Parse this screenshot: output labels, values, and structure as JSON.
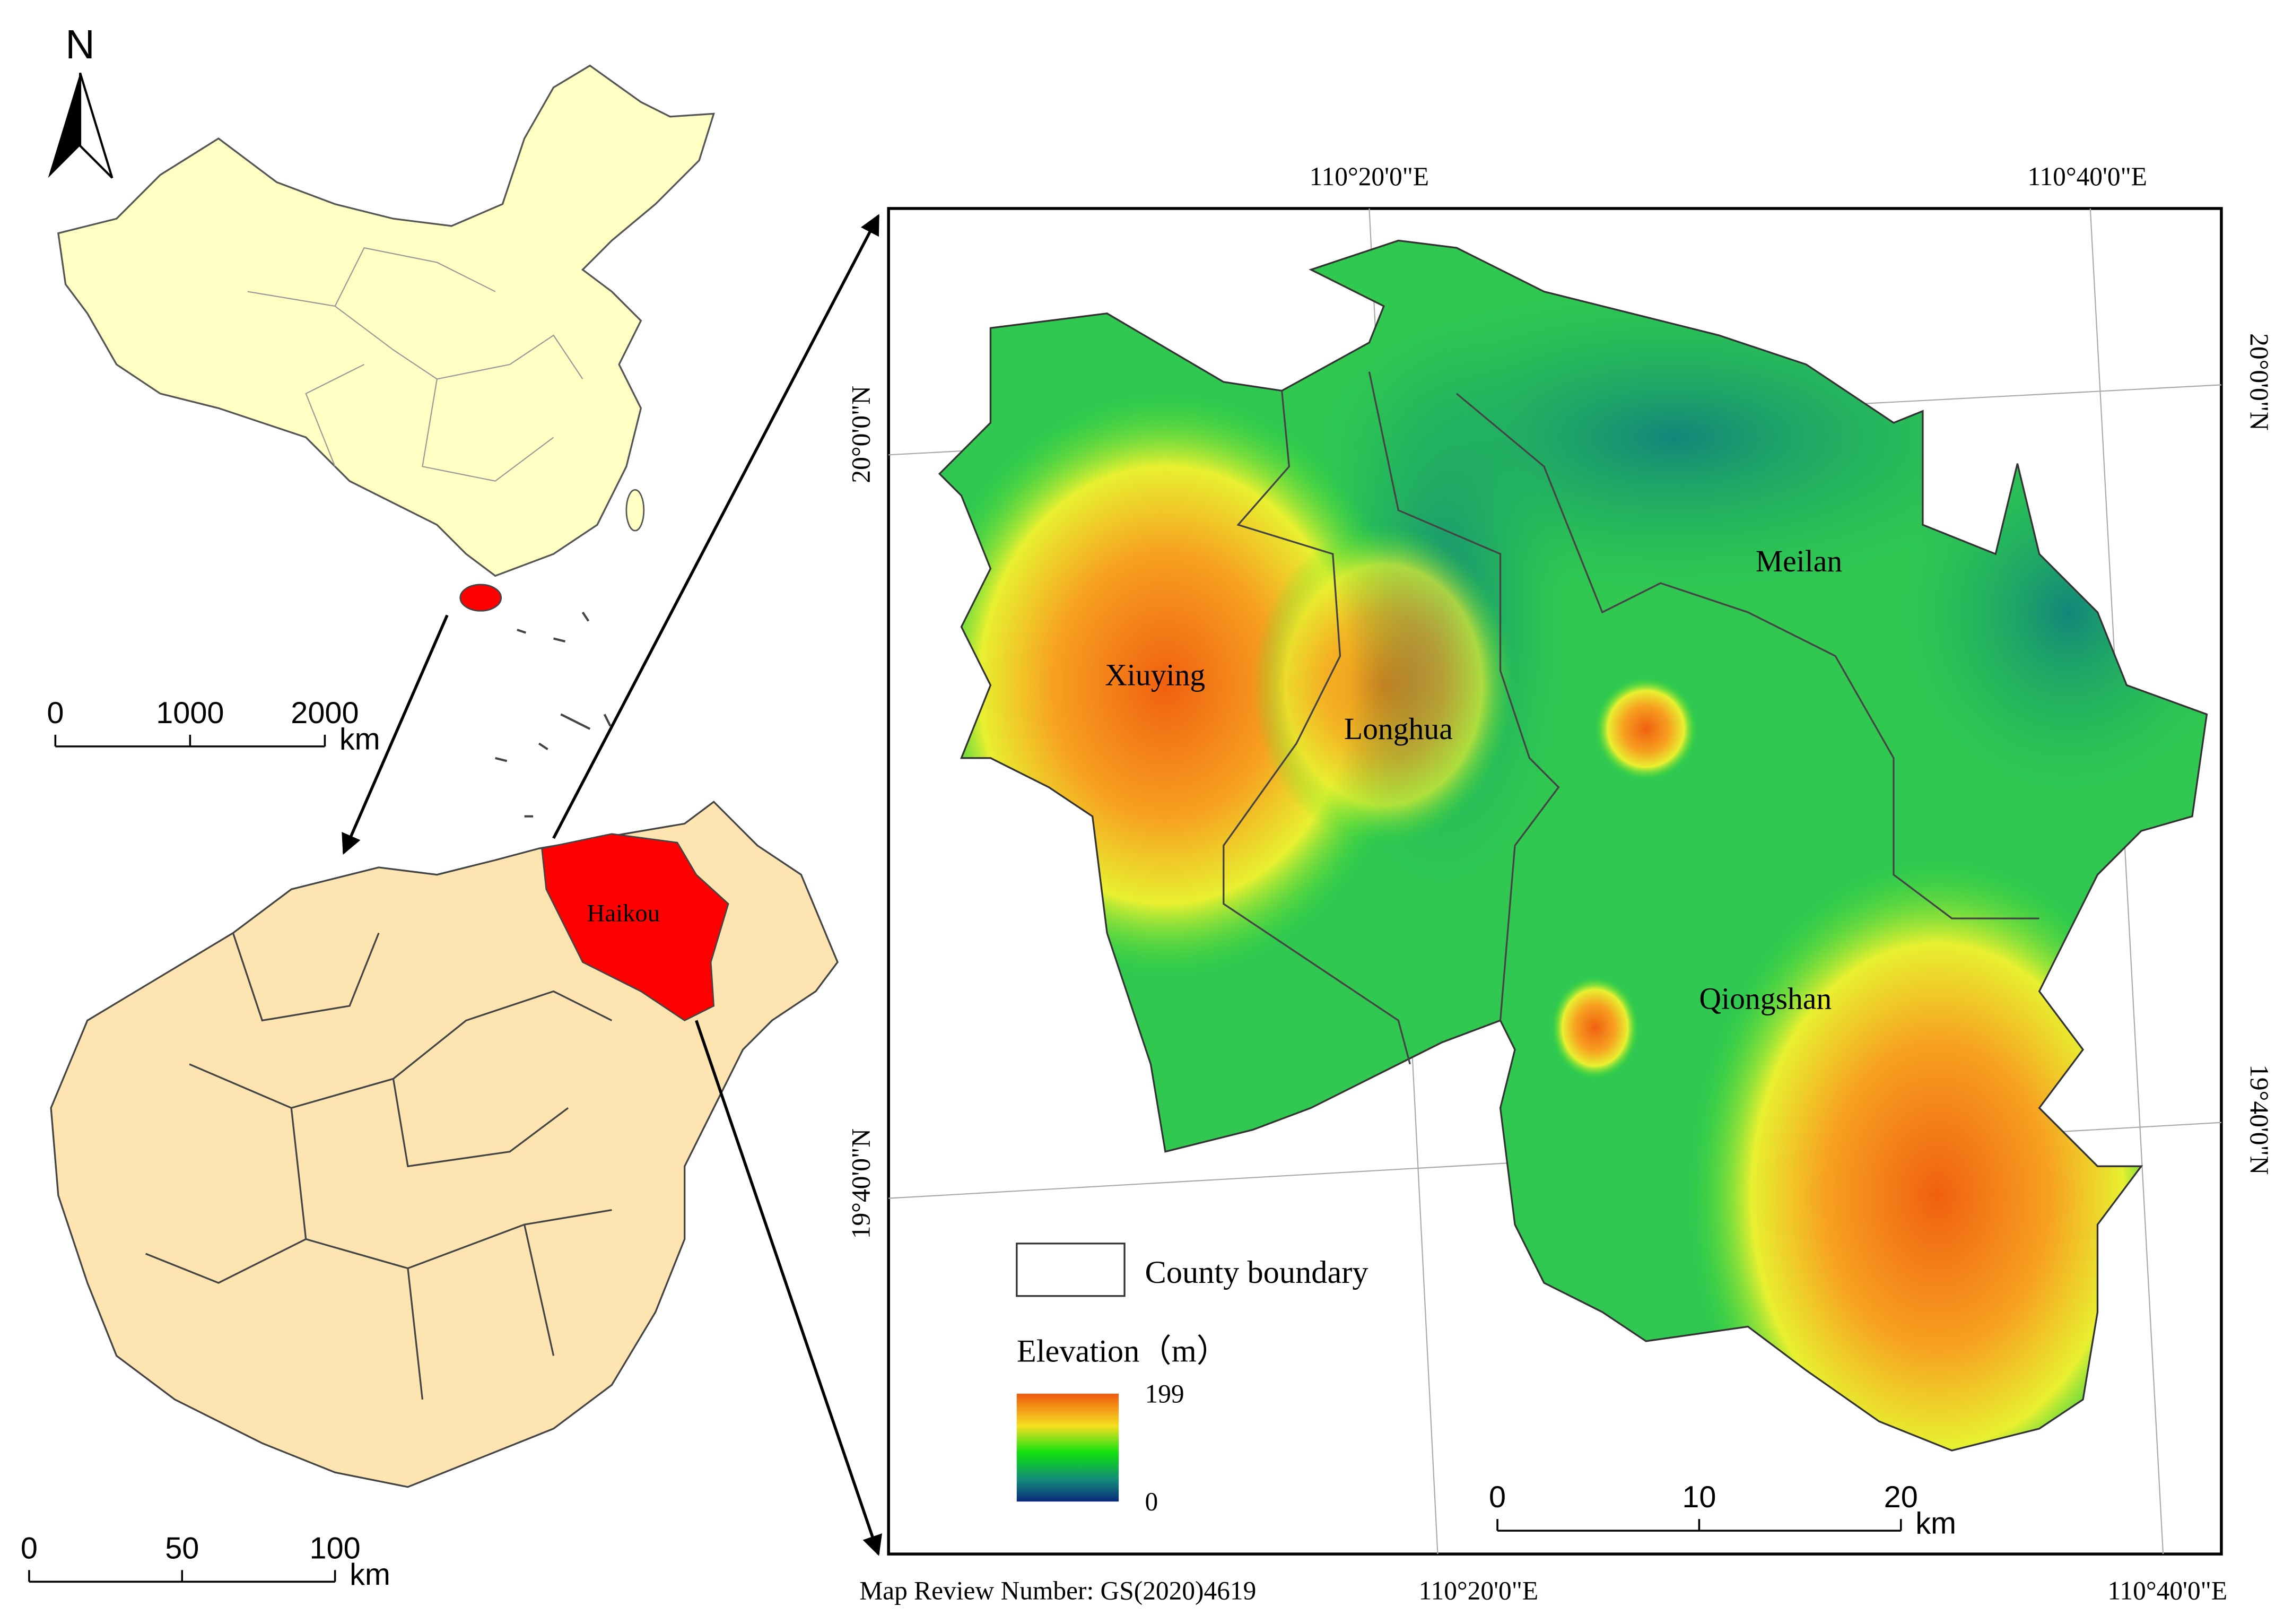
{
  "north_arrow": "N",
  "china_map": {
    "scale_bar": {
      "ticks": [
        0,
        1000,
        2000
      ],
      "unit": "km"
    }
  },
  "hainan_map": {
    "label": "Haikou",
    "scale_bar": {
      "ticks": [
        0,
        50,
        100
      ],
      "unit": "km"
    }
  },
  "haikou_map": {
    "districts": [
      "Xiuying",
      "Longhua",
      "Meilan",
      "Qiongshan"
    ],
    "graticule": {
      "top": [
        "110°20'0\"E",
        "110°40'0\"E"
      ],
      "bottom": [
        "110°20'0\"E",
        "110°40'0\"E"
      ],
      "left": [
        "20°0'0\"N",
        "19°40'0\"N"
      ],
      "right": [
        "20°0'0\"N",
        "19°40'0\"N"
      ]
    },
    "scale_bar": {
      "ticks": [
        0,
        10,
        20
      ],
      "unit": "km"
    },
    "legend": {
      "boundary": "County boundary",
      "title": "Elevation（m）",
      "max": 199,
      "min": 0
    }
  },
  "footer": "Map Review Number: GS(2020)4619"
}
